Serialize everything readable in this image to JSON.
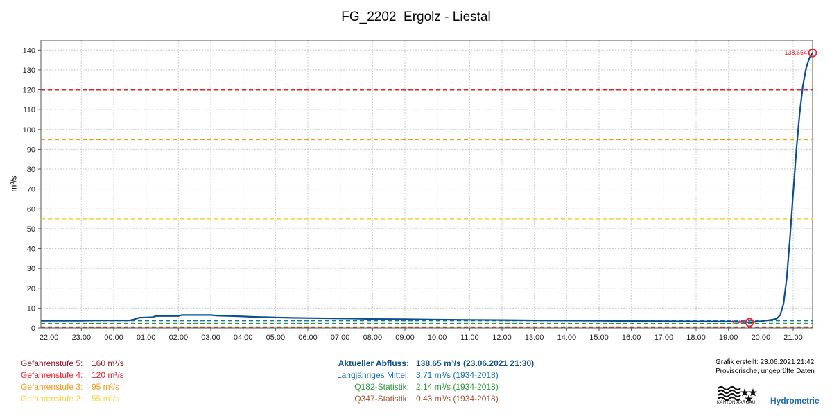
{
  "title": "FG_2202  Ergolz - Liestal",
  "chart_data": {
    "type": "line",
    "title": "FG_2202  Ergolz - Liestal",
    "ylabel": "m³/s",
    "xlabel": "",
    "ylim": [
      0,
      145
    ],
    "yticks": [
      0,
      10,
      20,
      30,
      40,
      50,
      60,
      70,
      80,
      90,
      100,
      110,
      120,
      130,
      140
    ],
    "x_start_hour": 21.75,
    "x_end_hour": 45.6,
    "xticks": [
      "22:00",
      "23:00",
      "00:00",
      "01:00",
      "02:00",
      "03:00",
      "04:00",
      "05:00",
      "06:00",
      "07:00",
      "08:00",
      "09:00",
      "10:00",
      "11:00",
      "12:00",
      "13:00",
      "14:00",
      "15:00",
      "16:00",
      "17:00",
      "18:00",
      "19:00",
      "20:00",
      "21:00"
    ],
    "grid": true,
    "series": [
      {
        "color": "#0b4f8f",
        "points": [
          [
            21.75,
            3.6
          ],
          [
            22.0,
            3.6
          ],
          [
            23.0,
            3.6
          ],
          [
            23.5,
            3.8
          ],
          [
            24.5,
            3.8
          ],
          [
            24.6,
            4.2
          ],
          [
            24.8,
            5.2
          ],
          [
            25.0,
            5.3
          ],
          [
            25.2,
            5.4
          ],
          [
            25.3,
            6.0
          ],
          [
            26.0,
            6.0
          ],
          [
            26.1,
            6.5
          ],
          [
            27.0,
            6.5
          ],
          [
            27.2,
            6.2
          ],
          [
            27.6,
            6.0
          ],
          [
            28.0,
            5.8
          ],
          [
            28.3,
            5.6
          ],
          [
            29.0,
            5.3
          ],
          [
            29.5,
            5.1
          ],
          [
            30.0,
            5.0
          ],
          [
            31.0,
            4.8
          ],
          [
            31.5,
            4.7
          ],
          [
            32.0,
            4.5
          ],
          [
            33.0,
            4.4
          ],
          [
            34.0,
            4.2
          ],
          [
            35.0,
            4.1
          ],
          [
            36.0,
            4.0
          ],
          [
            37.0,
            3.8
          ],
          [
            38.0,
            3.7
          ],
          [
            39.0,
            3.6
          ],
          [
            40.0,
            3.5
          ],
          [
            41.0,
            3.4
          ],
          [
            42.0,
            3.3
          ],
          [
            43.0,
            3.2
          ],
          [
            43.3,
            3.0
          ],
          [
            43.5,
            2.9
          ],
          [
            43.7,
            2.8
          ],
          [
            44.0,
            3.4
          ],
          [
            44.2,
            3.8
          ],
          [
            44.4,
            4.3
          ],
          [
            44.5,
            4.8
          ],
          [
            44.6,
            6.5
          ],
          [
            44.7,
            12.0
          ],
          [
            44.8,
            25.0
          ],
          [
            44.9,
            45.0
          ],
          [
            45.0,
            68.0
          ],
          [
            45.1,
            90.0
          ],
          [
            45.2,
            108.0
          ],
          [
            45.3,
            122.0
          ],
          [
            45.4,
            131.0
          ],
          [
            45.5,
            136.0
          ],
          [
            45.6,
            138.65
          ]
        ]
      }
    ],
    "threshold_lines": [
      {
        "value": 120,
        "color": "#e8212b"
      },
      {
        "value": 95,
        "color": "#f39a1e"
      },
      {
        "value": 55,
        "color": "#f7d23e"
      },
      {
        "value": 3.71,
        "color": "#1b6fb3"
      },
      {
        "value": 2.14,
        "color": "#2a9a3a"
      },
      {
        "value": 0.43,
        "color": "#a0522d"
      }
    ],
    "annotations": [
      {
        "x": 45.6,
        "y": 138.65,
        "text": "138,654",
        "color": "#e8212b"
      },
      {
        "x": 43.65,
        "y": 2.8,
        "text": "2,79",
        "color": "#e8212b"
      }
    ]
  },
  "legend": {
    "levels": [
      {
        "label": "Gefahrenstufe 5:",
        "value": "160 m³/s",
        "color": "#8b1a2b"
      },
      {
        "label": "Gefahrenstufe 4:",
        "value": "120 m³/s",
        "color": "#e8212b"
      },
      {
        "label": "Gefahrenstufe 3:",
        "value": "95 m³/s",
        "color": "#f39a1e"
      },
      {
        "label": "Gefahrenstufe 2:",
        "value": "55 m³/s",
        "color": "#f7d23e"
      }
    ],
    "stats": [
      {
        "label": "Aktueller Abfluss:",
        "value": "138.65 m³/s (23.06.2021 21:30)",
        "color": "#0b4f8f",
        "bold": true
      },
      {
        "label": "Langjähriges Mittel:",
        "value": "3.71 m³/s (1934-2018)",
        "color": "#1b6fb3",
        "bold": false
      },
      {
        "label": "Q182-Statistik:",
        "value": "2.14 m³/s (1934-2018)",
        "color": "#2a9a3a",
        "bold": false
      },
      {
        "label": "Q347-Statistik:",
        "value": "0.43 m³/s (1934-2018)",
        "color": "#a0522d",
        "bold": false
      }
    ]
  },
  "meta": {
    "created": "Grafik erstellt: 23.06.2021 21:42",
    "note": "Provisorische, ungeprüfte Daten",
    "logo_text": "KANTON AARGAU",
    "brand": "Hydrometrie"
  }
}
